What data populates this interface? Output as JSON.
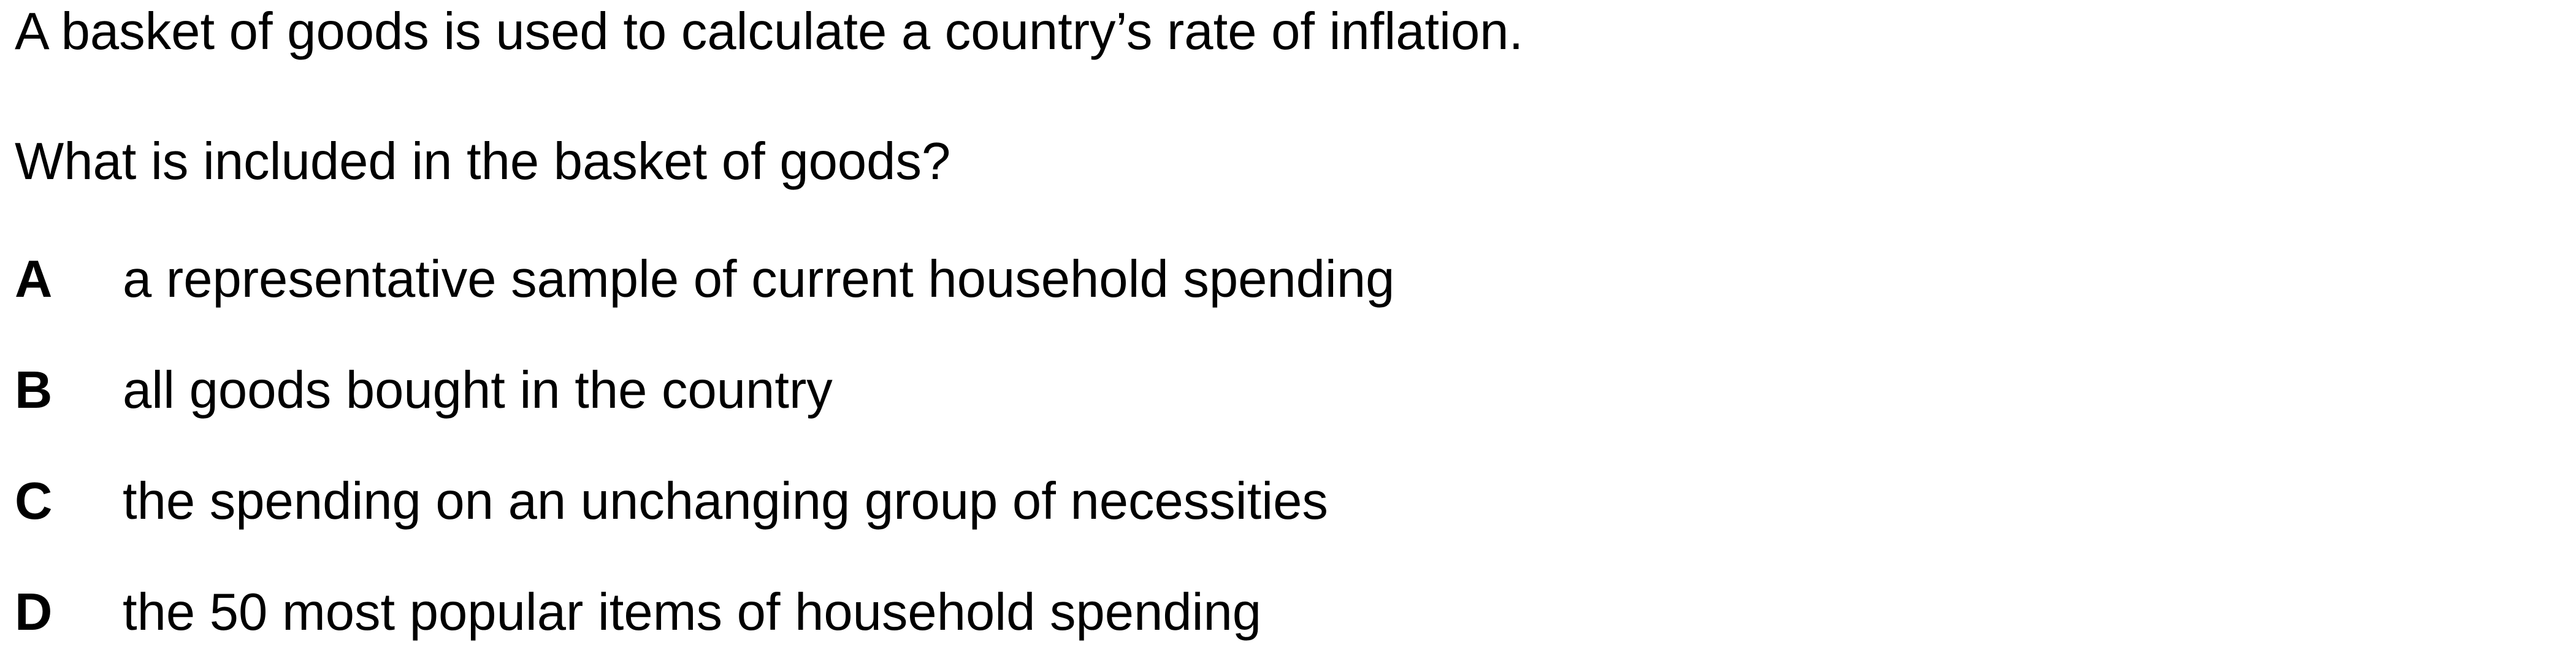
{
  "question": {
    "stem": "A basket of goods is used to calculate a country’s rate of inflation.",
    "prompt": "What is included in the basket of goods?"
  },
  "options": [
    {
      "letter": "A",
      "text": "a representative sample of current household spending"
    },
    {
      "letter": "B",
      "text": "all goods bought in the country"
    },
    {
      "letter": "C",
      "text": "the spending on an unchanging group of necessities"
    },
    {
      "letter": "D",
      "text": "the 50 most popular items of household spending"
    }
  ]
}
